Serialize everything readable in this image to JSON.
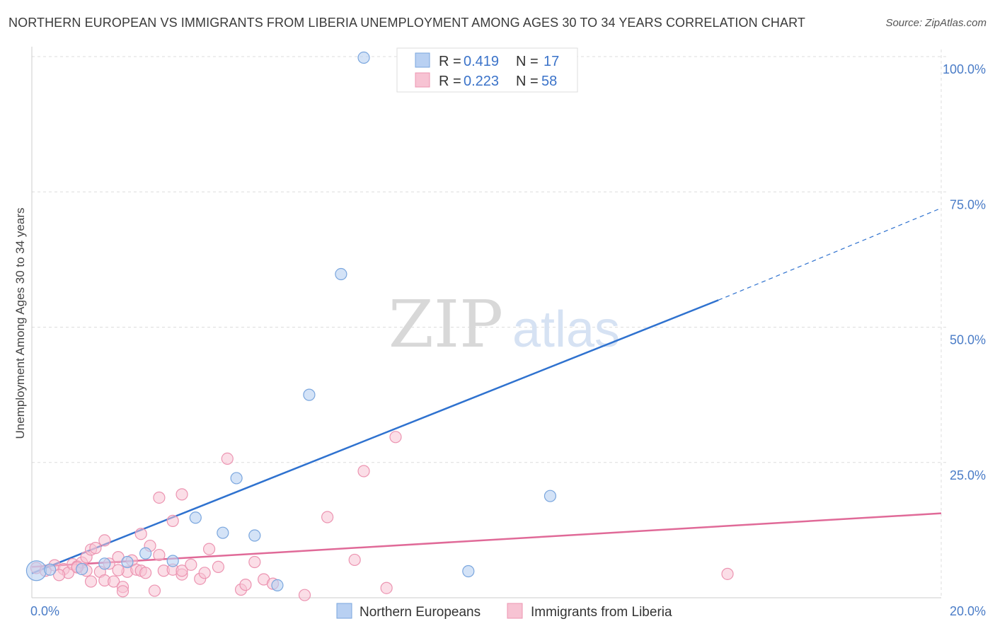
{
  "header": {
    "title": "NORTHERN EUROPEAN VS IMMIGRANTS FROM LIBERIA UNEMPLOYMENT AMONG AGES 30 TO 34 YEARS CORRELATION CHART",
    "source": "Source: ZipAtlas.com"
  },
  "watermark": {
    "zip": "ZIP",
    "atlas": "atlas"
  },
  "colors": {
    "blue_fill": "#b8d0f2",
    "blue_stroke": "#7aa6de",
    "blue_line": "#2f72cf",
    "pink_fill": "#f7c3d3",
    "pink_stroke": "#ec94b1",
    "pink_line": "#e06a98",
    "grid": "#dddddd",
    "tick_text": "#4a7cc7"
  },
  "chart_data": {
    "type": "scatter",
    "title": "NORTHERN EUROPEAN VS IMMIGRANTS FROM LIBERIA UNEMPLOYMENT AMONG AGES 30 TO 34 YEARS CORRELATION CHART",
    "xlabel": "",
    "ylabel": "Unemployment Among Ages 30 to 34 years",
    "xlim": [
      0,
      20
    ],
    "ylim": [
      0,
      100
    ],
    "x_ticks": [
      0,
      20
    ],
    "x_tick_labels": [
      "0.0%",
      "20.0%"
    ],
    "y_ticks": [
      25,
      50,
      75,
      100
    ],
    "y_tick_labels": [
      "25.0%",
      "50.0%",
      "75.0%",
      "100.0%"
    ],
    "grid": true,
    "legend_placement": "top-center",
    "stats_legend": [
      {
        "r_label": "R =",
        "r_value": "0.419",
        "n_label": "N =",
        "n_value": "17"
      },
      {
        "r_label": "R =",
        "r_value": "0.223",
        "n_label": "N =",
        "n_value": "58"
      }
    ],
    "series": [
      {
        "name": "Northern Europeans",
        "color": "#7aa6de",
        "points": [
          {
            "x": 0.1,
            "y": 5.0
          },
          {
            "x": 1.1,
            "y": 5.3
          },
          {
            "x": 1.6,
            "y": 6.3
          },
          {
            "x": 2.1,
            "y": 6.6
          },
          {
            "x": 2.5,
            "y": 8.2
          },
          {
            "x": 3.1,
            "y": 6.8
          },
          {
            "x": 3.6,
            "y": 14.8
          },
          {
            "x": 4.2,
            "y": 12.0
          },
          {
            "x": 4.5,
            "y": 22.1
          },
          {
            "x": 4.9,
            "y": 11.5
          },
          {
            "x": 5.4,
            "y": 2.3
          },
          {
            "x": 6.1,
            "y": 37.5
          },
          {
            "x": 6.8,
            "y": 59.8
          },
          {
            "x": 7.3,
            "y": 99.8
          },
          {
            "x": 9.6,
            "y": 4.9
          },
          {
            "x": 11.4,
            "y": 18.8
          },
          {
            "x": 0.4,
            "y": 5.2
          }
        ],
        "trend": {
          "x": [
            0.0,
            15.1
          ],
          "y": [
            4.5,
            55.0
          ],
          "dashed_to": {
            "x": 20.0,
            "y": 72.0
          }
        }
      },
      {
        "name": "Immigrants from Liberia",
        "color": "#ec94b1",
        "points": [
          {
            "x": 0.1,
            "y": 5.5
          },
          {
            "x": 0.3,
            "y": 5.0
          },
          {
            "x": 0.5,
            "y": 6.0
          },
          {
            "x": 0.7,
            "y": 5.3
          },
          {
            "x": 0.8,
            "y": 4.6
          },
          {
            "x": 0.9,
            "y": 6.2
          },
          {
            "x": 1.0,
            "y": 5.8
          },
          {
            "x": 1.1,
            "y": 6.5
          },
          {
            "x": 1.2,
            "y": 5.0
          },
          {
            "x": 1.2,
            "y": 7.5
          },
          {
            "x": 1.3,
            "y": 8.9
          },
          {
            "x": 1.3,
            "y": 3.0
          },
          {
            "x": 1.4,
            "y": 9.2
          },
          {
            "x": 1.5,
            "y": 4.8
          },
          {
            "x": 1.6,
            "y": 10.6
          },
          {
            "x": 1.6,
            "y": 3.2
          },
          {
            "x": 1.7,
            "y": 6.3
          },
          {
            "x": 1.8,
            "y": 3.0
          },
          {
            "x": 1.9,
            "y": 7.5
          },
          {
            "x": 2.0,
            "y": 2.0
          },
          {
            "x": 2.0,
            "y": 1.2
          },
          {
            "x": 2.1,
            "y": 4.8
          },
          {
            "x": 2.2,
            "y": 6.9
          },
          {
            "x": 2.3,
            "y": 5.2
          },
          {
            "x": 2.4,
            "y": 5.0
          },
          {
            "x": 2.4,
            "y": 11.8
          },
          {
            "x": 2.6,
            "y": 9.6
          },
          {
            "x": 2.7,
            "y": 1.3
          },
          {
            "x": 2.8,
            "y": 7.9
          },
          {
            "x": 2.8,
            "y": 18.5
          },
          {
            "x": 2.9,
            "y": 5.0
          },
          {
            "x": 3.1,
            "y": 14.2
          },
          {
            "x": 3.1,
            "y": 5.2
          },
          {
            "x": 3.3,
            "y": 4.3
          },
          {
            "x": 3.3,
            "y": 5.0
          },
          {
            "x": 3.3,
            "y": 19.1
          },
          {
            "x": 3.7,
            "y": 3.5
          },
          {
            "x": 3.8,
            "y": 4.6
          },
          {
            "x": 3.9,
            "y": 9.0
          },
          {
            "x": 4.1,
            "y": 5.7
          },
          {
            "x": 4.3,
            "y": 25.7
          },
          {
            "x": 4.6,
            "y": 1.5
          },
          {
            "x": 4.7,
            "y": 2.4
          },
          {
            "x": 4.9,
            "y": 6.6
          },
          {
            "x": 5.1,
            "y": 3.4
          },
          {
            "x": 5.3,
            "y": 2.6
          },
          {
            "x": 6.0,
            "y": 0.5
          },
          {
            "x": 6.5,
            "y": 14.9
          },
          {
            "x": 7.1,
            "y": 7.0
          },
          {
            "x": 7.3,
            "y": 23.4
          },
          {
            "x": 7.8,
            "y": 1.8
          },
          {
            "x": 8.0,
            "y": 29.7
          },
          {
            "x": 15.3,
            "y": 4.4
          },
          {
            "x": 0.6,
            "y": 4.2
          },
          {
            "x": 1.0,
            "y": 5.6
          },
          {
            "x": 1.9,
            "y": 5.1
          },
          {
            "x": 2.5,
            "y": 4.6
          },
          {
            "x": 3.5,
            "y": 6.1
          }
        ],
        "trend": {
          "x": [
            0.0,
            20.0
          ],
          "y": [
            5.7,
            15.6
          ]
        }
      }
    ]
  },
  "bottom_legend": {
    "items": [
      {
        "label": "Northern Europeans"
      },
      {
        "label": "Immigrants from Liberia"
      }
    ]
  }
}
